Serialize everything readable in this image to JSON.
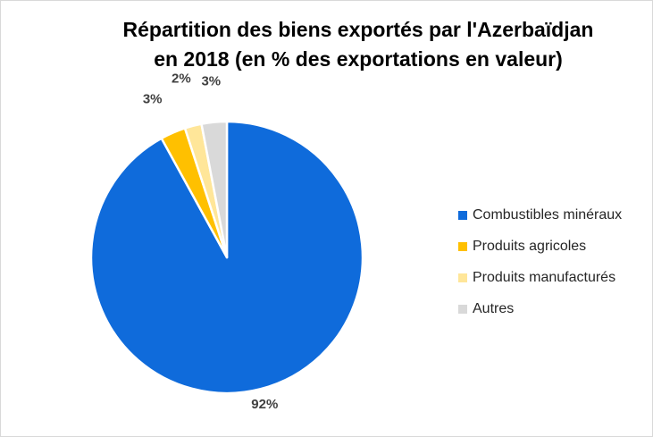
{
  "chart_data": {
    "type": "pie",
    "title_lines": [
      "Répartition des biens exportés par l'Azerbaïdjan",
      "en 2018 (en % des exportations en valeur)"
    ],
    "categories": [
      "Combustibles minéraux",
      "Produits agricoles",
      "Produits manufacturés",
      "Autres"
    ],
    "values": [
      92,
      3,
      2,
      3
    ],
    "data_labels": [
      "92%",
      "3%",
      "2%",
      "3%"
    ],
    "colors": [
      "#0f6bdb",
      "#ffc000",
      "#ffe699",
      "#d9d9d9"
    ],
    "legend_position": "right"
  }
}
